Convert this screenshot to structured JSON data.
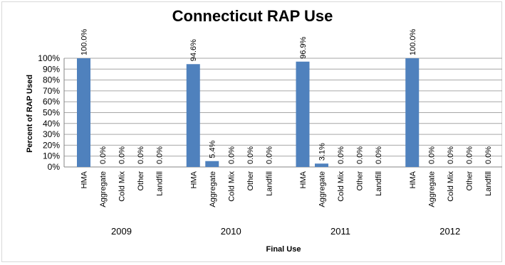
{
  "chart_data": {
    "type": "bar",
    "title": "Connecticut RAP Use",
    "xlabel": "Final Use",
    "ylabel": "Percent of RAP Used",
    "ylim": [
      0,
      100
    ],
    "y_ticks": [
      "0%",
      "10%",
      "20%",
      "30%",
      "40%",
      "50%",
      "60%",
      "70%",
      "80%",
      "90%",
      "100%"
    ],
    "grid": true,
    "bar_color": "#4f81bd",
    "groups": [
      {
        "name": "2009",
        "categories": [
          "HMA",
          "Aggregate",
          "Cold Mix",
          "Other",
          "Landfill"
        ],
        "values": [
          100.0,
          0.0,
          0.0,
          0.0,
          0.0
        ],
        "labels": [
          "100.0%",
          "0.0%",
          "0.0%",
          "0.0%",
          "0.0%"
        ]
      },
      {
        "name": "2010",
        "categories": [
          "HMA",
          "Aggregate",
          "Cold Mix",
          "Other",
          "Landfill"
        ],
        "values": [
          94.6,
          5.4,
          0.0,
          0.0,
          0.0
        ],
        "labels": [
          "94.6%",
          "5.4%",
          "0.0%",
          "0.0%",
          "0.0%"
        ]
      },
      {
        "name": "2011",
        "categories": [
          "HMA",
          "Aggregate",
          "Cold Mix",
          "Other",
          "Landfill"
        ],
        "values": [
          96.9,
          3.1,
          0.0,
          0.0,
          0.0
        ],
        "labels": [
          "96.9%",
          "3.1%",
          "0.0%",
          "0.0%",
          "0.0%"
        ]
      },
      {
        "name": "2012",
        "categories": [
          "HMA",
          "Aggregate",
          "Cold Mix",
          "Other",
          "Landfill"
        ],
        "values": [
          100.0,
          0.0,
          0.0,
          0.0,
          0.0
        ],
        "labels": [
          "100.0%",
          "0.0%",
          "0.0%",
          "0.0%",
          "0.0%"
        ]
      }
    ]
  }
}
